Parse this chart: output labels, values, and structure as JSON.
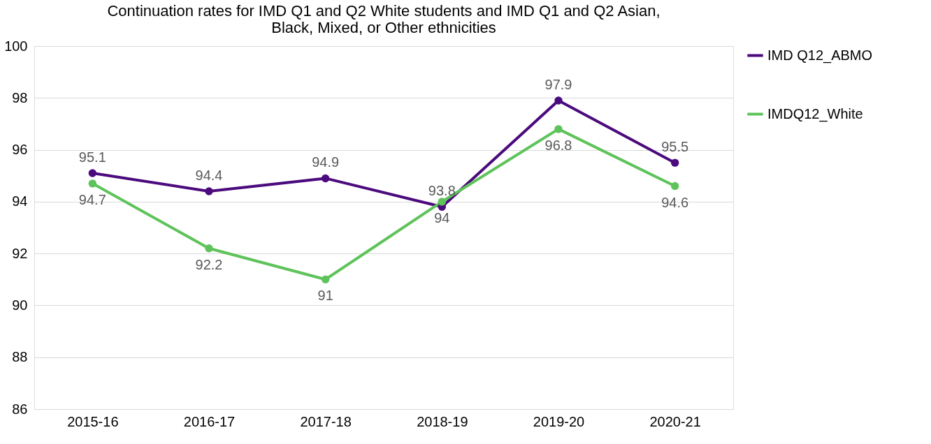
{
  "chart_data": {
    "type": "line",
    "title": "Continuation rates for IMD Q1 and Q2 White students and IMD Q1 and Q2 Asian, Black, Mixed, or Other ethnicities",
    "categories": [
      "2015-16",
      "2016-17",
      "2017-18",
      "2018-19",
      "2019-20",
      "2020-21"
    ],
    "series": [
      {
        "name": "IMD Q12_ABMO",
        "color": "#4b0a7d",
        "values": [
          95.1,
          94.4,
          94.9,
          93.8,
          97.9,
          95.5
        ]
      },
      {
        "name": "IMDQ12_White",
        "color": "#5ec35a",
        "values": [
          94.7,
          92.2,
          91,
          94,
          96.8,
          94.6
        ]
      }
    ],
    "ylim": [
      86,
      100
    ],
    "yticks": [
      86,
      88,
      90,
      92,
      94,
      96,
      98,
      100
    ],
    "grid": "y",
    "legend": "right",
    "marker": "circle",
    "line_style": "solid",
    "data_labels": true
  }
}
